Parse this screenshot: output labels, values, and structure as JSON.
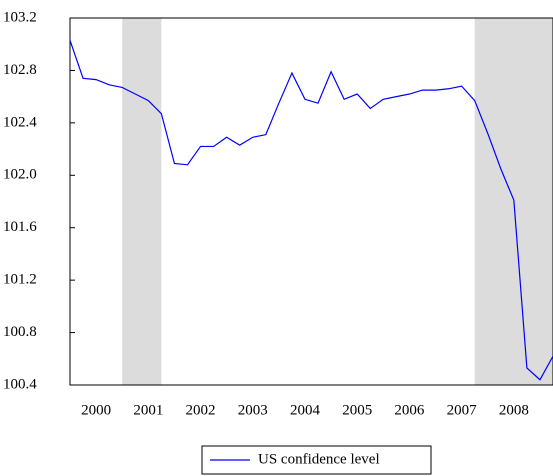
{
  "chart_data": {
    "type": "line",
    "x": [
      2000,
      2000.25,
      2000.5,
      2000.75,
      2001,
      2001.25,
      2001.5,
      2001.75,
      2002,
      2002.25,
      2002.5,
      2002.75,
      2003,
      2003.25,
      2003.5,
      2003.75,
      2004,
      2004.25,
      2004.5,
      2004.75,
      2005,
      2005.25,
      2005.5,
      2005.75,
      2006,
      2006.25,
      2006.5,
      2006.75,
      2007,
      2007.25,
      2007.5,
      2007.75,
      2008,
      2008.25,
      2008.5,
      2008.75,
      2009,
      2009.25
    ],
    "series": [
      {
        "name": "US confidence level",
        "color": "#0000ff",
        "values": [
          103.03,
          102.74,
          102.73,
          102.69,
          102.67,
          102.62,
          102.57,
          102.47,
          102.09,
          102.08,
          102.22,
          102.22,
          102.29,
          102.23,
          102.29,
          102.31,
          102.55,
          102.78,
          102.58,
          102.55,
          102.79,
          102.58,
          102.62,
          102.51,
          102.58,
          102.6,
          102.62,
          102.65,
          102.65,
          102.66,
          102.68,
          102.57,
          102.32,
          102.05,
          101.81,
          100.53,
          100.44,
          100.62
        ]
      }
    ],
    "shaded": [
      [
        2001,
        2001.75
      ],
      [
        2007.75,
        2009.25
      ]
    ],
    "xlim": [
      2000,
      2009.25
    ],
    "xticks": [
      {
        "value": 2000.5,
        "label": "2000"
      },
      {
        "value": 2001.5,
        "label": "2001"
      },
      {
        "value": 2002.5,
        "label": "2002"
      },
      {
        "value": 2003.5,
        "label": "2003"
      },
      {
        "value": 2004.5,
        "label": "2004"
      },
      {
        "value": 2005.5,
        "label": "2005"
      },
      {
        "value": 2006.5,
        "label": "2006"
      },
      {
        "value": 2007.5,
        "label": "2007"
      },
      {
        "value": 2008.5,
        "label": "2008"
      }
    ],
    "ylim": [
      100.4,
      103.2
    ],
    "yticks": [
      100.4,
      100.8,
      101.2,
      101.6,
      {
        "value": 102,
        "label": "102.0"
      },
      102.4,
      102.8,
      103.2
    ]
  }
}
